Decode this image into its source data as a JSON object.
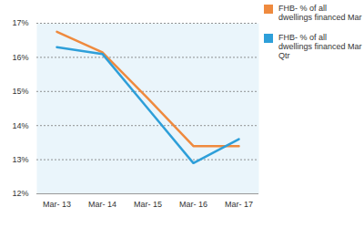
{
  "chart_data": {
    "type": "line",
    "categories": [
      "Mar- 13",
      "Mar- 14",
      "Mar- 15",
      "Mar- 16",
      "Mar- 17"
    ],
    "series": [
      {
        "name": "FHB- % of all dwellings financed Mar",
        "color": "#ef8a3e",
        "values": [
          16.75,
          16.15,
          14.8,
          13.4,
          13.4
        ]
      },
      {
        "name": "FHB- % of all dwellings financed Mar Qtr",
        "color": "#2e9fd9",
        "values": [
          16.3,
          16.1,
          14.5,
          12.9,
          13.6
        ]
      }
    ],
    "ylim": [
      12,
      17
    ],
    "yticks": [
      {
        "value": 12,
        "label": "12%"
      },
      {
        "value": 13,
        "label": "13%"
      },
      {
        "value": 14,
        "label": "14%"
      },
      {
        "value": 15,
        "label": "15%"
      },
      {
        "value": 16,
        "label": "16%"
      },
      {
        "value": 17,
        "label": "17%"
      }
    ],
    "grid": true,
    "legend": "right"
  }
}
